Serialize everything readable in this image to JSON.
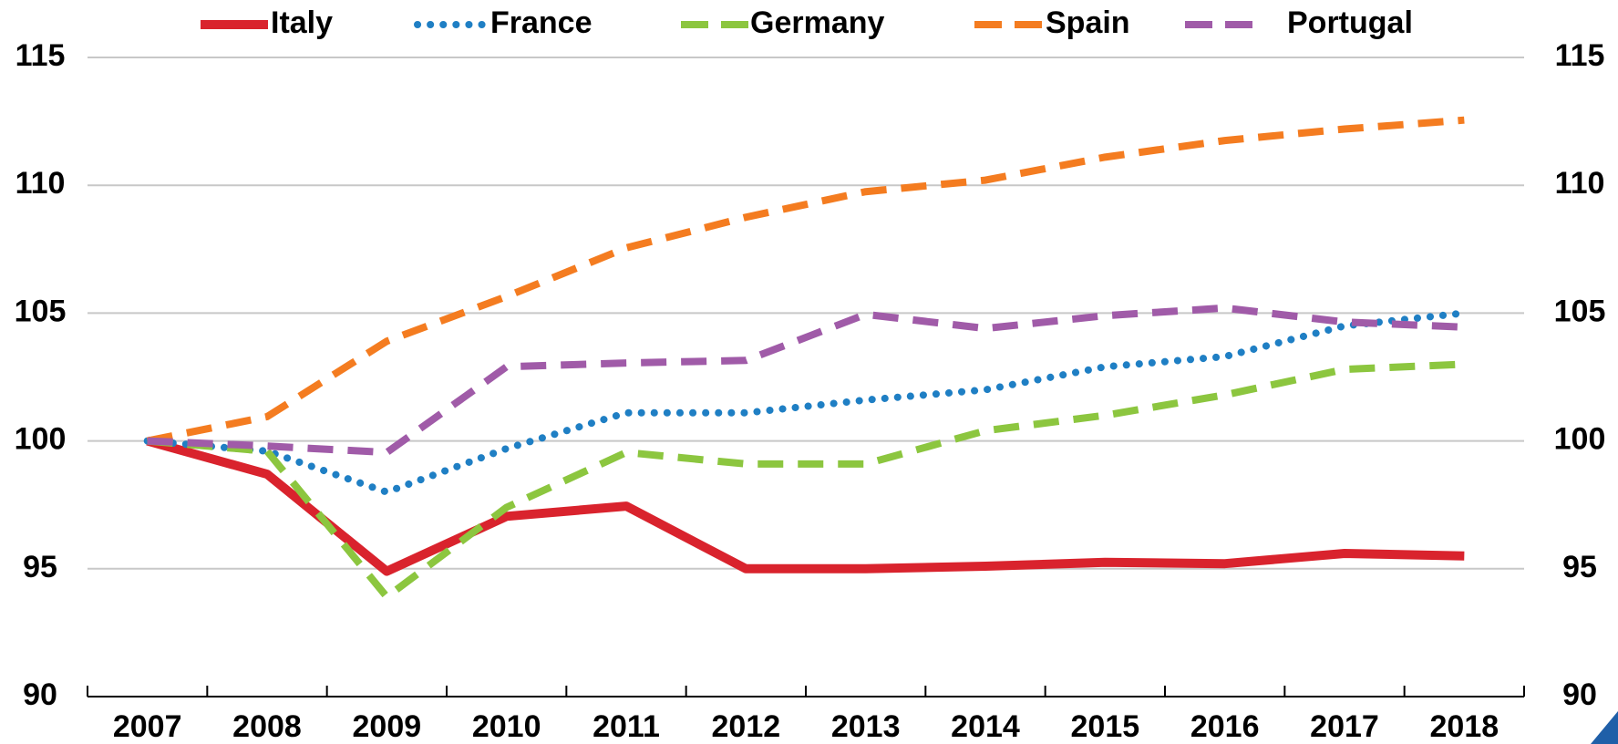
{
  "chart_data": {
    "type": "line",
    "categories": [
      "2007",
      "2008",
      "2009",
      "2010",
      "2011",
      "2012",
      "2013",
      "2014",
      "2015",
      "2016",
      "2017",
      "2018"
    ],
    "series": [
      {
        "name": "Italy",
        "color": "#d9232d",
        "style": "solid",
        "values": [
          100,
          98.7,
          94.9,
          97.05,
          97.45,
          95.0,
          95.0,
          95.1,
          95.25,
          95.2,
          95.6,
          95.5
        ]
      },
      {
        "name": "France",
        "color": "#1f7fc4",
        "style": "dotted",
        "values": [
          100,
          99.6,
          98.0,
          99.7,
          101.1,
          101.1,
          101.6,
          102.0,
          102.9,
          103.3,
          104.5,
          105.0
        ]
      },
      {
        "name": "Germany",
        "color": "#8cc63f",
        "style": "dashed",
        "values": [
          100,
          99.6,
          93.9,
          97.4,
          99.55,
          99.1,
          99.1,
          100.4,
          101.0,
          101.8,
          102.8,
          103.0
        ]
      },
      {
        "name": "Spain",
        "color": "#f47c20",
        "style": "dashed",
        "values": [
          100,
          100.95,
          103.9,
          105.65,
          107.55,
          108.75,
          109.75,
          110.2,
          111.1,
          111.75,
          112.2,
          112.55
        ]
      },
      {
        "name": "Portugal",
        "color": "#a05ba8",
        "style": "dashed",
        "values": [
          100,
          99.8,
          99.55,
          102.9,
          103.05,
          103.15,
          104.95,
          104.4,
          104.9,
          105.2,
          104.65,
          104.45
        ]
      }
    ],
    "ylim": [
      90,
      115
    ],
    "yticks": [
      90,
      95,
      100,
      105,
      110,
      115
    ],
    "y2lim": [
      90,
      115
    ],
    "y2ticks": [
      90,
      95,
      100,
      105,
      110,
      115
    ],
    "grid": true,
    "legend": "top"
  }
}
